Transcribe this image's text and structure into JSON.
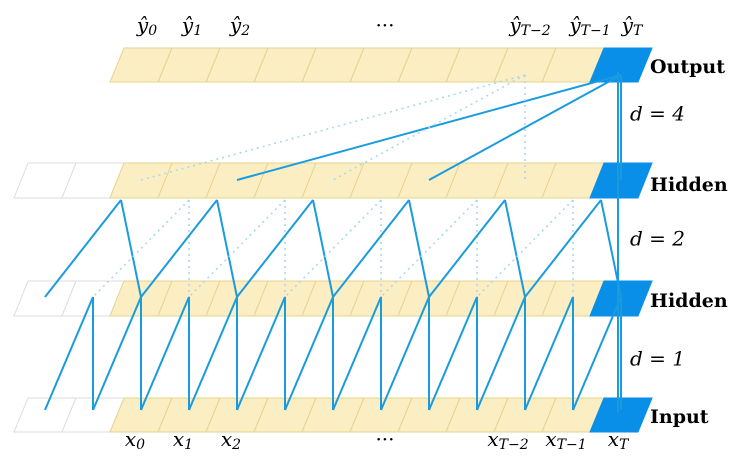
{
  "outputs": [
    {
      "main": "ŷ",
      "sub": "0"
    },
    {
      "main": "ŷ",
      "sub": "1"
    },
    {
      "main": "ŷ",
      "sub": "2"
    },
    {
      "main": "···"
    },
    {
      "main": "ŷ",
      "sub": "T−2"
    },
    {
      "main": "ŷ",
      "sub": "T−1"
    },
    {
      "main": "ŷ",
      "sub": "T"
    }
  ],
  "inputs": [
    {
      "main": "x",
      "sub": "0"
    },
    {
      "main": "x",
      "sub": "1"
    },
    {
      "main": "x",
      "sub": "2"
    },
    {
      "main": "···"
    },
    {
      "main": "x",
      "sub": "T−2"
    },
    {
      "main": "x",
      "sub": "T−1"
    },
    {
      "main": "x",
      "sub": "T"
    }
  ],
  "layers": [
    "Output",
    "Hidden",
    "Hidden",
    "Input"
  ],
  "dilations": [
    "d = 4",
    "d = 2",
    "d = 1"
  ]
}
